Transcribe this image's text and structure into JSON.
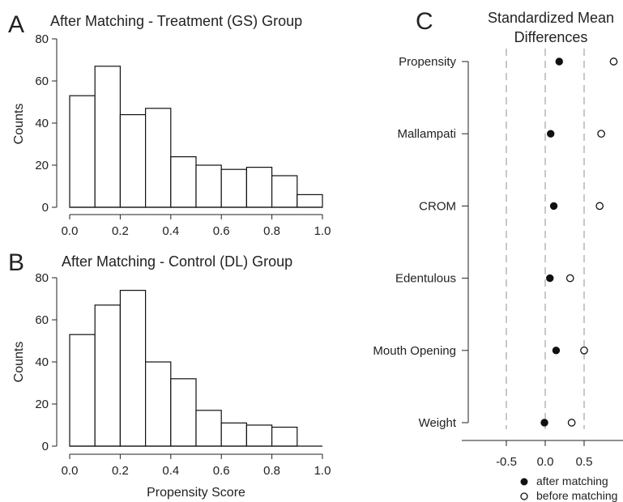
{
  "panels": {
    "a_letter": "A",
    "b_letter": "B",
    "c_letter": "C"
  },
  "colors": {
    "axis": "#222222",
    "bar_fill": "#ffffff",
    "bar_stroke": "#111111",
    "ref_line": "#bbbbbb",
    "after_point": "#111111",
    "before_point": "#ffffff"
  },
  "chart_data": [
    {
      "type": "bar",
      "title": "After Matching - Treatment (GS) Group",
      "ylabel": "Counts",
      "xlabel": "",
      "bin_edges": [
        0.0,
        0.1,
        0.2,
        0.3,
        0.4,
        0.5,
        0.6,
        0.7,
        0.8,
        0.9,
        1.0
      ],
      "values": [
        53,
        67,
        44,
        47,
        24,
        20,
        18,
        19,
        15,
        6
      ],
      "xlim": [
        0.0,
        1.0
      ],
      "ylim": [
        0,
        80
      ],
      "xticks": [
        "0.0",
        "0.2",
        "0.4",
        "0.6",
        "0.8",
        "1.0"
      ],
      "yticks": [
        "0",
        "20",
        "40",
        "60",
        "80"
      ],
      "grid": false
    },
    {
      "type": "bar",
      "title": "After Matching - Control (DL) Group",
      "ylabel": "Counts",
      "xlabel": "Propensity Score",
      "bin_edges": [
        0.0,
        0.1,
        0.2,
        0.3,
        0.4,
        0.5,
        0.6,
        0.7,
        0.8,
        0.9
      ],
      "values": [
        53,
        67,
        74,
        40,
        32,
        17,
        11,
        10,
        9
      ],
      "xlim": [
        0.0,
        1.0
      ],
      "ylim": [
        0,
        80
      ],
      "xticks": [
        "0.0",
        "0.2",
        "0.4",
        "0.6",
        "0.8",
        "1.0"
      ],
      "yticks": [
        "0",
        "20",
        "40",
        "60",
        "80"
      ],
      "grid": false
    },
    {
      "type": "scatter",
      "title": "Standardized Mean\nDifferences",
      "categories": [
        "Propensity",
        "Mallampati",
        "CROM",
        "Edentulous",
        "Mouth Opening",
        "Weight"
      ],
      "series": [
        {
          "name": "after matching",
          "values": [
            0.18,
            0.07,
            0.11,
            0.06,
            0.14,
            -0.01
          ]
        },
        {
          "name": "before matching",
          "values": [
            0.88,
            0.72,
            0.7,
            0.32,
            0.5,
            0.34
          ]
        }
      ],
      "reference_lines": [
        -0.5,
        0.0,
        0.5
      ],
      "xticks": [
        "-0.5",
        "0.0",
        "0.5"
      ],
      "legend_position": "bottom",
      "grid": false
    }
  ]
}
